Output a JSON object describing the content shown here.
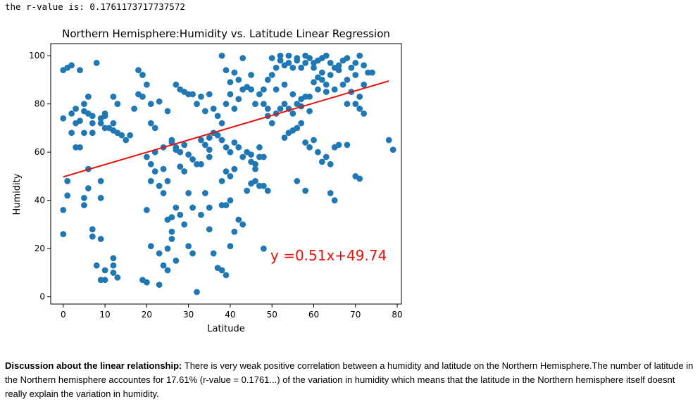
{
  "output_text": "the r-value is: 0.1761173717737572",
  "chart_data": {
    "type": "scatter",
    "title": "Northern Hemisphere:Humidity vs. Latitude Linear Regression",
    "xlabel": "Latitude",
    "ylabel": "Humidity",
    "xlim": [
      -3,
      81
    ],
    "ylim": [
      -3,
      105
    ],
    "xticks": [
      0,
      10,
      20,
      30,
      40,
      50,
      60,
      70,
      80
    ],
    "yticks": [
      0,
      20,
      40,
      60,
      80,
      100
    ],
    "point_color": "#1f77b4",
    "line_color": "#e8110a",
    "regression": {
      "slope": 0.51,
      "intercept": 49.74,
      "x_range": [
        0,
        78
      ],
      "equation": "y =0.51x+49.74"
    },
    "points": [
      [
        0,
        94
      ],
      [
        1,
        95
      ],
      [
        2,
        96
      ],
      [
        4,
        94
      ],
      [
        8,
        97
      ],
      [
        18,
        94
      ],
      [
        19,
        92
      ],
      [
        33,
        83
      ],
      [
        40,
        89
      ],
      [
        42,
        90
      ],
      [
        43,
        99
      ],
      [
        41,
        93
      ],
      [
        38,
        100
      ],
      [
        39,
        94
      ],
      [
        45,
        92
      ],
      [
        0,
        74
      ],
      [
        2,
        76
      ],
      [
        3,
        78
      ],
      [
        4,
        73
      ],
      [
        3,
        72
      ],
      [
        5,
        80
      ],
      [
        5,
        77
      ],
      [
        6,
        83
      ],
      [
        6,
        76
      ],
      [
        7,
        75
      ],
      [
        7,
        72
      ],
      [
        9,
        74
      ],
      [
        9,
        72
      ],
      [
        10,
        75
      ],
      [
        10,
        70
      ],
      [
        11,
        70
      ],
      [
        12,
        72
      ],
      [
        12,
        69
      ],
      [
        13,
        68
      ],
      [
        14,
        67
      ],
      [
        2,
        68
      ],
      [
        3,
        62
      ],
      [
        4,
        62
      ],
      [
        5,
        68
      ],
      [
        6,
        83
      ],
      [
        7,
        68
      ],
      [
        10,
        76
      ],
      [
        12,
        83
      ],
      [
        13,
        80
      ],
      [
        15,
        65
      ],
      [
        16,
        67
      ],
      [
        17,
        78
      ],
      [
        18,
        84
      ],
      [
        19,
        83
      ],
      [
        20,
        88
      ],
      [
        21,
        80
      ],
      [
        21,
        72
      ],
      [
        22,
        70
      ],
      [
        23,
        81
      ],
      [
        25,
        77
      ],
      [
        27,
        88
      ],
      [
        28,
        86
      ],
      [
        29,
        85
      ],
      [
        30,
        84
      ],
      [
        31,
        84
      ],
      [
        32,
        80
      ],
      [
        34,
        77
      ],
      [
        35,
        84
      ],
      [
        36,
        78
      ],
      [
        37,
        75
      ],
      [
        38,
        72
      ],
      [
        39,
        80
      ],
      [
        40,
        84
      ],
      [
        41,
        78
      ],
      [
        42,
        82
      ],
      [
        43,
        86
      ],
      [
        44,
        87
      ],
      [
        45,
        86
      ],
      [
        46,
        80
      ],
      [
        47,
        84
      ],
      [
        48,
        80
      ],
      [
        49,
        78
      ],
      [
        33,
        65
      ],
      [
        35,
        66
      ],
      [
        36,
        68
      ],
      [
        37,
        67
      ],
      [
        38,
        65
      ],
      [
        39,
        62
      ],
      [
        40,
        60
      ],
      [
        41,
        64
      ],
      [
        42,
        62
      ],
      [
        43,
        58
      ],
      [
        44,
        60
      ],
      [
        45,
        56
      ],
      [
        46,
        55
      ],
      [
        47,
        58
      ],
      [
        48,
        58
      ],
      [
        26,
        65
      ],
      [
        27,
        62
      ],
      [
        28,
        60
      ],
      [
        29,
        63
      ],
      [
        1,
        48
      ],
      [
        1,
        42
      ],
      [
        0,
        36
      ],
      [
        0,
        26
      ],
      [
        5,
        41
      ],
      [
        6,
        45
      ],
      [
        6,
        53
      ],
      [
        5,
        38
      ],
      [
        9,
        48
      ],
      [
        9,
        41
      ],
      [
        7,
        28
      ],
      [
        7,
        25
      ],
      [
        9,
        24
      ],
      [
        8,
        13
      ],
      [
        9,
        7
      ],
      [
        10,
        7
      ],
      [
        10,
        11
      ],
      [
        12,
        10
      ],
      [
        12,
        13
      ],
      [
        13,
        8
      ],
      [
        12,
        16
      ],
      [
        19,
        7
      ],
      [
        20,
        6
      ],
      [
        23,
        5
      ],
      [
        20,
        36
      ],
      [
        21,
        21
      ],
      [
        23,
        18
      ],
      [
        24,
        13
      ],
      [
        25,
        11
      ],
      [
        25,
        20
      ],
      [
        26,
        24
      ],
      [
        26,
        27
      ],
      [
        27,
        15
      ],
      [
        21,
        48
      ],
      [
        21,
        55
      ],
      [
        22,
        52
      ],
      [
        23,
        46
      ],
      [
        24,
        43
      ],
      [
        24,
        53
      ],
      [
        25,
        48
      ],
      [
        20,
        58
      ],
      [
        22,
        60
      ],
      [
        24,
        62
      ],
      [
        26,
        64
      ],
      [
        27,
        61
      ],
      [
        28,
        54
      ],
      [
        29,
        52
      ],
      [
        30,
        59
      ],
      [
        31,
        57
      ],
      [
        32,
        55
      ],
      [
        30,
        43
      ],
      [
        31,
        37
      ],
      [
        29,
        30
      ],
      [
        28,
        34
      ],
      [
        27,
        37
      ],
      [
        26,
        33
      ],
      [
        25,
        32
      ],
      [
        30,
        21
      ],
      [
        31,
        18
      ],
      [
        32,
        2
      ],
      [
        33,
        34
      ],
      [
        34,
        43
      ],
      [
        35,
        37
      ],
      [
        35,
        28
      ],
      [
        36,
        18
      ],
      [
        37,
        12
      ],
      [
        38,
        11
      ],
      [
        39,
        9
      ],
      [
        38,
        38
      ],
      [
        39,
        38
      ],
      [
        40,
        40
      ],
      [
        40,
        21
      ],
      [
        41,
        27
      ],
      [
        42,
        32
      ],
      [
        43,
        30
      ],
      [
        44,
        44
      ],
      [
        45,
        47
      ],
      [
        46,
        48
      ],
      [
        47,
        46
      ],
      [
        48,
        20
      ],
      [
        38,
        48
      ],
      [
        39,
        52
      ],
      [
        40,
        50
      ],
      [
        41,
        53
      ],
      [
        48,
        86
      ],
      [
        49,
        90
      ],
      [
        50,
        92
      ],
      [
        51,
        95
      ],
      [
        52,
        98
      ],
      [
        53,
        96
      ],
      [
        54,
        97
      ],
      [
        55,
        95
      ],
      [
        56,
        98
      ],
      [
        57,
        95
      ],
      [
        58,
        100
      ],
      [
        59,
        99
      ],
      [
        60,
        97
      ],
      [
        61,
        98
      ],
      [
        62,
        99
      ],
      [
        63,
        100
      ],
      [
        64,
        97
      ],
      [
        65,
        95
      ],
      [
        66,
        96
      ],
      [
        67,
        98
      ],
      [
        68,
        99
      ],
      [
        69,
        95
      ],
      [
        70,
        97
      ],
      [
        71,
        100
      ],
      [
        72,
        96
      ],
      [
        73,
        93
      ],
      [
        50,
        99
      ],
      [
        52,
        100
      ],
      [
        54,
        100
      ],
      [
        56,
        99
      ],
      [
        58,
        97
      ],
      [
        60,
        95
      ],
      [
        62,
        93
      ],
      [
        64,
        92
      ],
      [
        66,
        94
      ],
      [
        68,
        90
      ],
      [
        70,
        92
      ],
      [
        72,
        88
      ],
      [
        74,
        93
      ],
      [
        51,
        86
      ],
      [
        53,
        88
      ],
      [
        55,
        84
      ],
      [
        57,
        82
      ],
      [
        59,
        83
      ],
      [
        61,
        86
      ],
      [
        63,
        85
      ],
      [
        65,
        86
      ],
      [
        67,
        88
      ],
      [
        69,
        85
      ],
      [
        71,
        83
      ],
      [
        49,
        75
      ],
      [
        50,
        72
      ],
      [
        51,
        76
      ],
      [
        52,
        78
      ],
      [
        53,
        80
      ],
      [
        54,
        78
      ],
      [
        55,
        76
      ],
      [
        56,
        80
      ],
      [
        57,
        79
      ],
      [
        58,
        83
      ],
      [
        59,
        77
      ],
      [
        53,
        66
      ],
      [
        54,
        68
      ],
      [
        55,
        69
      ],
      [
        56,
        70
      ],
      [
        57,
        72
      ],
      [
        58,
        64
      ],
      [
        59,
        62
      ],
      [
        60,
        65
      ],
      [
        61,
        60
      ],
      [
        62,
        56
      ],
      [
        63,
        58
      ],
      [
        64,
        55
      ],
      [
        65,
        62
      ],
      [
        66,
        63
      ],
      [
        49,
        44
      ],
      [
        48,
        46
      ],
      [
        56,
        48
      ],
      [
        58,
        44
      ],
      [
        64,
        43
      ],
      [
        65,
        40
      ],
      [
        70,
        50
      ],
      [
        71,
        49
      ],
      [
        78,
        65
      ],
      [
        79,
        61
      ],
      [
        70,
        80
      ],
      [
        71,
        78
      ],
      [
        72,
        76
      ],
      [
        68,
        80
      ],
      [
        68,
        63
      ],
      [
        62,
        90
      ],
      [
        63,
        88
      ],
      [
        60,
        89
      ],
      [
        61,
        91
      ],
      [
        45,
        59
      ],
      [
        46,
        53
      ],
      [
        47,
        62
      ],
      [
        33,
        55
      ],
      [
        34,
        63
      ],
      [
        35,
        61
      ],
      [
        35,
        58
      ]
    ]
  },
  "discussion": {
    "label": "Discussion about the linear relationship:",
    "text": " There is very weak positive correlation between a humidity and latitude on the Northern Hemisphere.The number of latitude in the Northern hemisphere accountes for 17.61% (r-value = 0.1761...) of the variation in humidity which means that the latitude in the Northern hemisphere itself doesnt really explain the variation in humidity."
  }
}
